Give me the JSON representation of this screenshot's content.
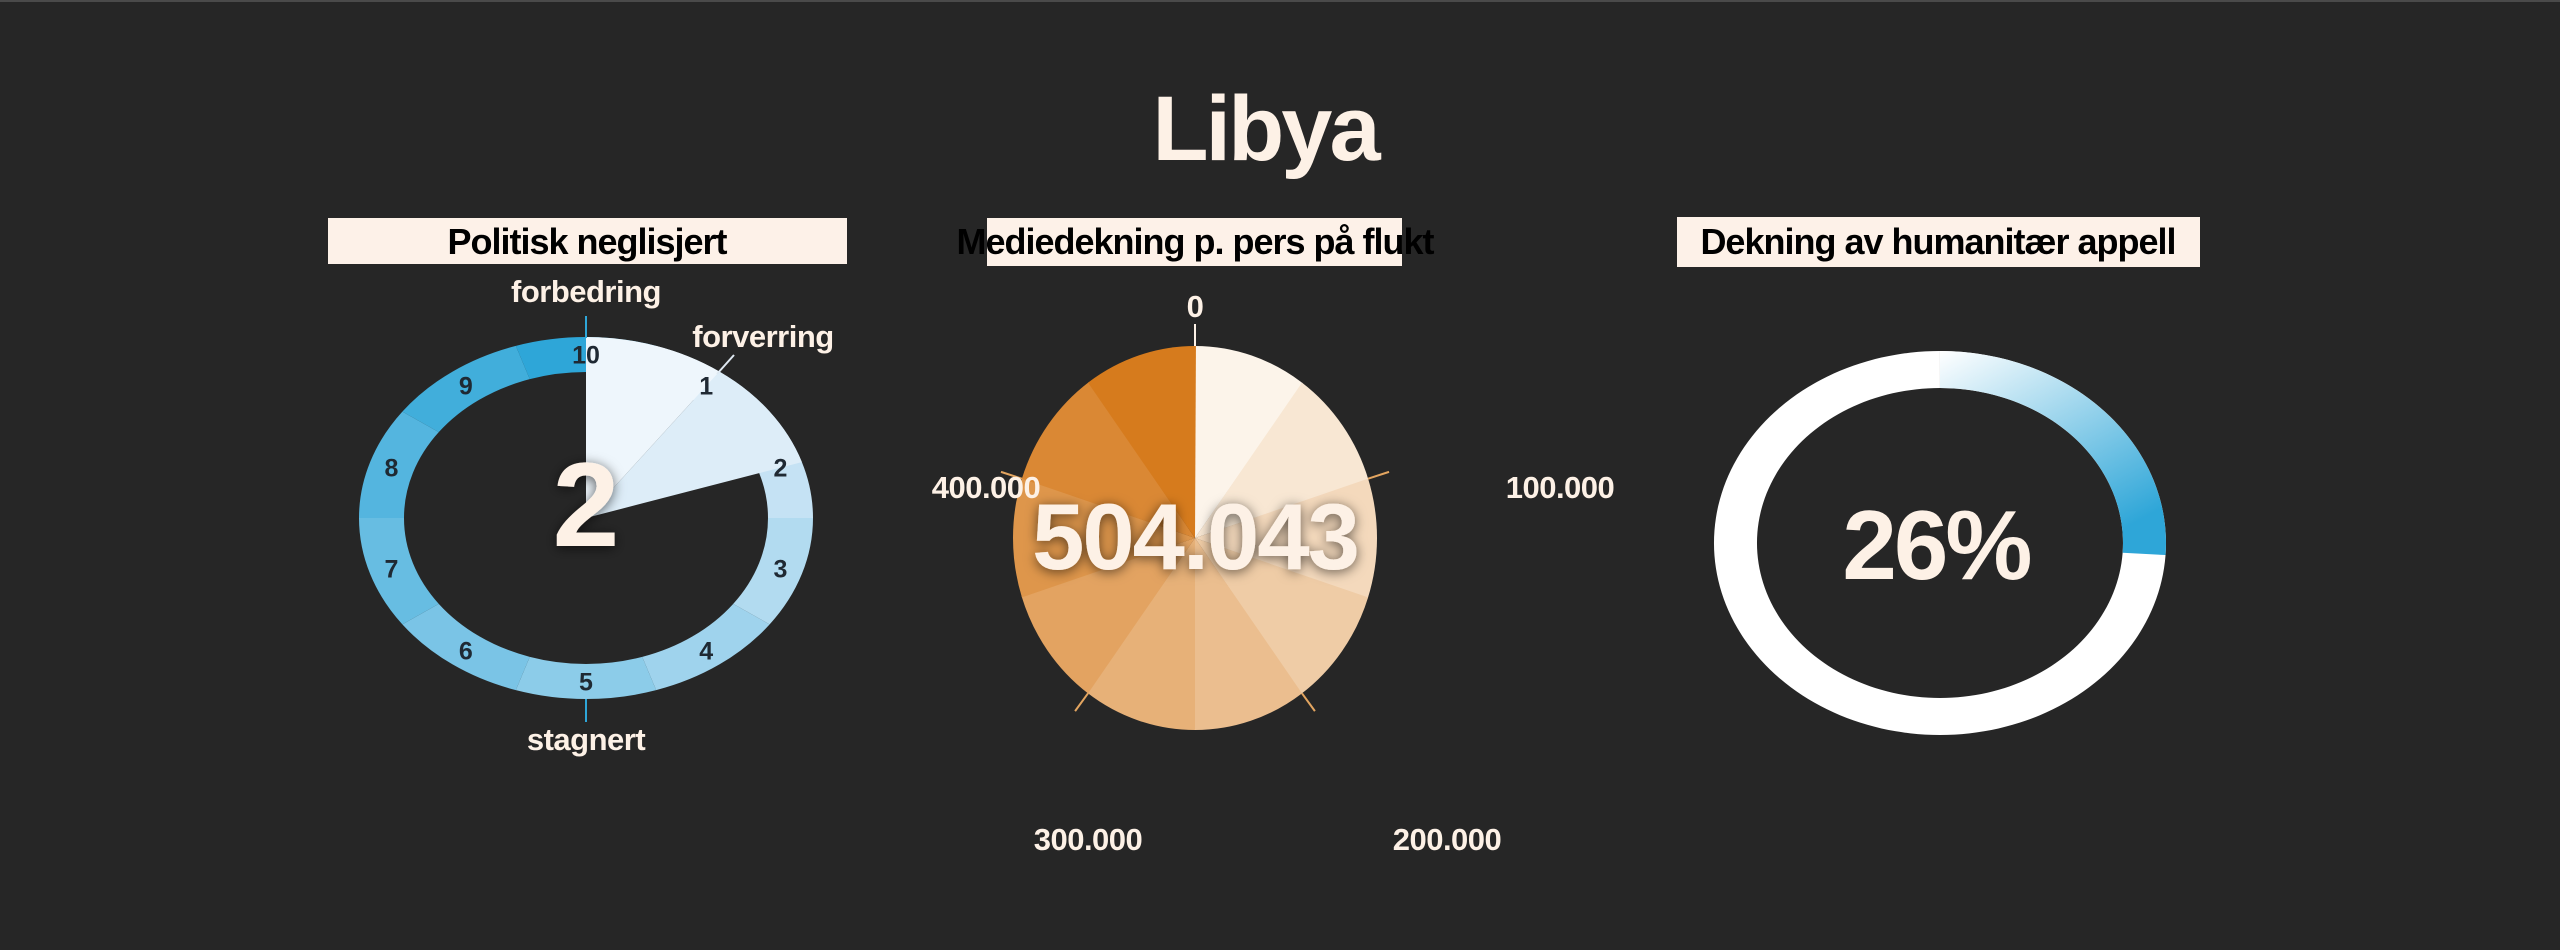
{
  "title": "Libya",
  "colors": {
    "background": "#262626",
    "header_bg": "#fdf1e8",
    "text_light": "#fdf1e6",
    "blue": "#2ea6d8",
    "orange": "#d67b1d"
  },
  "chart_data": [
    {
      "type": "gauge",
      "title": "Politisk neglisjert",
      "value": 2,
      "value_label": "2",
      "scale_min": 0,
      "scale_max": 10,
      "tick_labels": [
        "10",
        "1",
        "2",
        "3",
        "4",
        "5",
        "6",
        "7",
        "8",
        "9"
      ],
      "annotations": {
        "top": "forbedring",
        "upper_right": "forverring",
        "bottom": "stagnert"
      }
    },
    {
      "type": "pie",
      "title": "Mediedekning p. pers på flukt",
      "value": 504043,
      "value_label": "504.043",
      "scale_max": 500000,
      "segments": 10,
      "tick_labels": [
        "0",
        "100.000",
        "200.000",
        "300.000",
        "400.000"
      ]
    },
    {
      "type": "gauge",
      "title": "Dekning av humanitær appell",
      "value_percent": 26,
      "value_label": "26%"
    }
  ]
}
